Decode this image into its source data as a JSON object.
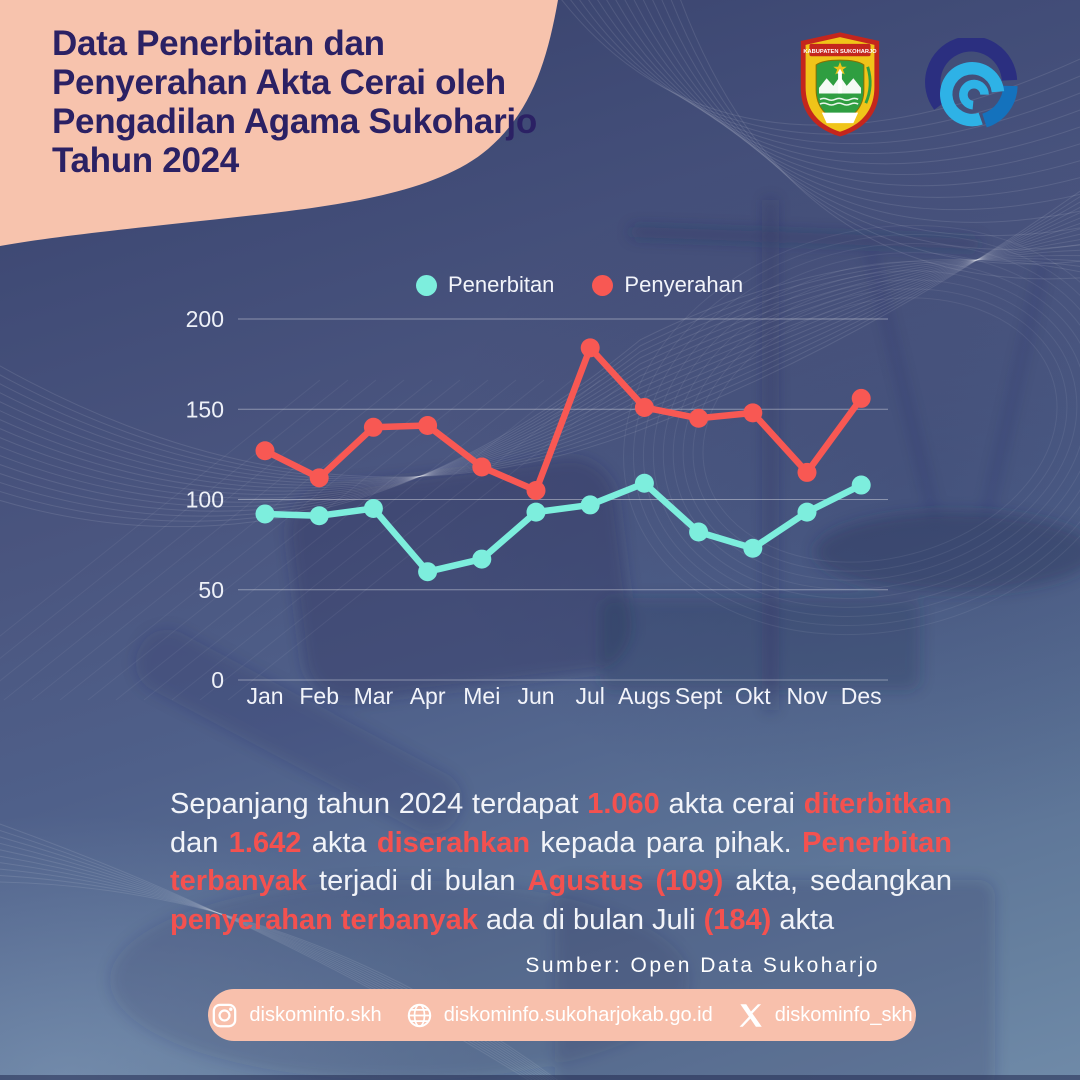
{
  "title": {
    "text": "Data Penerbitan dan\nPenyerahan Akta Cerai oleh\nPengadilan Agama Sukoharjo\nTahun 2024"
  },
  "logos": {
    "sukoharjo_banner_text": "KABUPATEN SUKOHARJO"
  },
  "chart_data": {
    "type": "line",
    "title": "",
    "categories": [
      "Jan",
      "Feb",
      "Mar",
      "Apr",
      "Mei",
      "Jun",
      "Jul",
      "Augs",
      "Sept",
      "Okt",
      "Nov",
      "Des"
    ],
    "series": [
      {
        "name": "Penerbitan",
        "color": "#7deedd",
        "values": [
          92,
          91,
          95,
          60,
          67,
          93,
          97,
          109,
          82,
          73,
          93,
          108
        ]
      },
      {
        "name": "Penyerahan",
        "color": "#f85853",
        "values": [
          127,
          112,
          140,
          141,
          118,
          105,
          184,
          151,
          145,
          148,
          115,
          156
        ]
      }
    ],
    "ylim": [
      0,
      200
    ],
    "yticks": [
      0,
      50,
      100,
      150,
      200
    ],
    "grid": true,
    "legend_position": "top"
  },
  "body": {
    "segments": [
      {
        "text": "Sepanjang tahun 2024 terdapat ",
        "h": false
      },
      {
        "text": "1.060",
        "h": true
      },
      {
        "text": " akta cerai ",
        "h": false
      },
      {
        "text": "diterbitkan",
        "h": true
      },
      {
        "text": " dan ",
        "h": false
      },
      {
        "text": "1.642",
        "h": true
      },
      {
        "text": " akta ",
        "h": false
      },
      {
        "text": "diserahkan",
        "h": true
      },
      {
        "text": " kepada para pihak. ",
        "h": false
      },
      {
        "text": "Penerbitan terbanyak",
        "h": true
      },
      {
        "text": " terjadi di bulan ",
        "h": false
      },
      {
        "text": "Agustus (109)",
        "h": true
      },
      {
        "text": " akta, sedangkan ",
        "h": false
      },
      {
        "text": "penyerahan terbanyak",
        "h": true
      },
      {
        "text": " ada di bulan Juli ",
        "h": false
      },
      {
        "text": "(184)",
        "h": true
      },
      {
        "text": " akta",
        "h": false
      }
    ]
  },
  "source": {
    "label": "Sumber: Open Data Sukoharjo"
  },
  "footer": {
    "items": [
      {
        "icon": "instagram-icon",
        "label": "diskominfo.skh"
      },
      {
        "icon": "globe-icon",
        "label": "diskominfo.sukoharjokab.go.id"
      },
      {
        "icon": "x-icon",
        "label": "diskominfo_skh"
      }
    ]
  },
  "colors": {
    "accent_peach": "#f7c3ad",
    "title_navy": "#2b2164",
    "penerbitan_teal": "#7deedd",
    "penyerahan_red": "#f85853",
    "highlight_red": "#f4514f"
  }
}
